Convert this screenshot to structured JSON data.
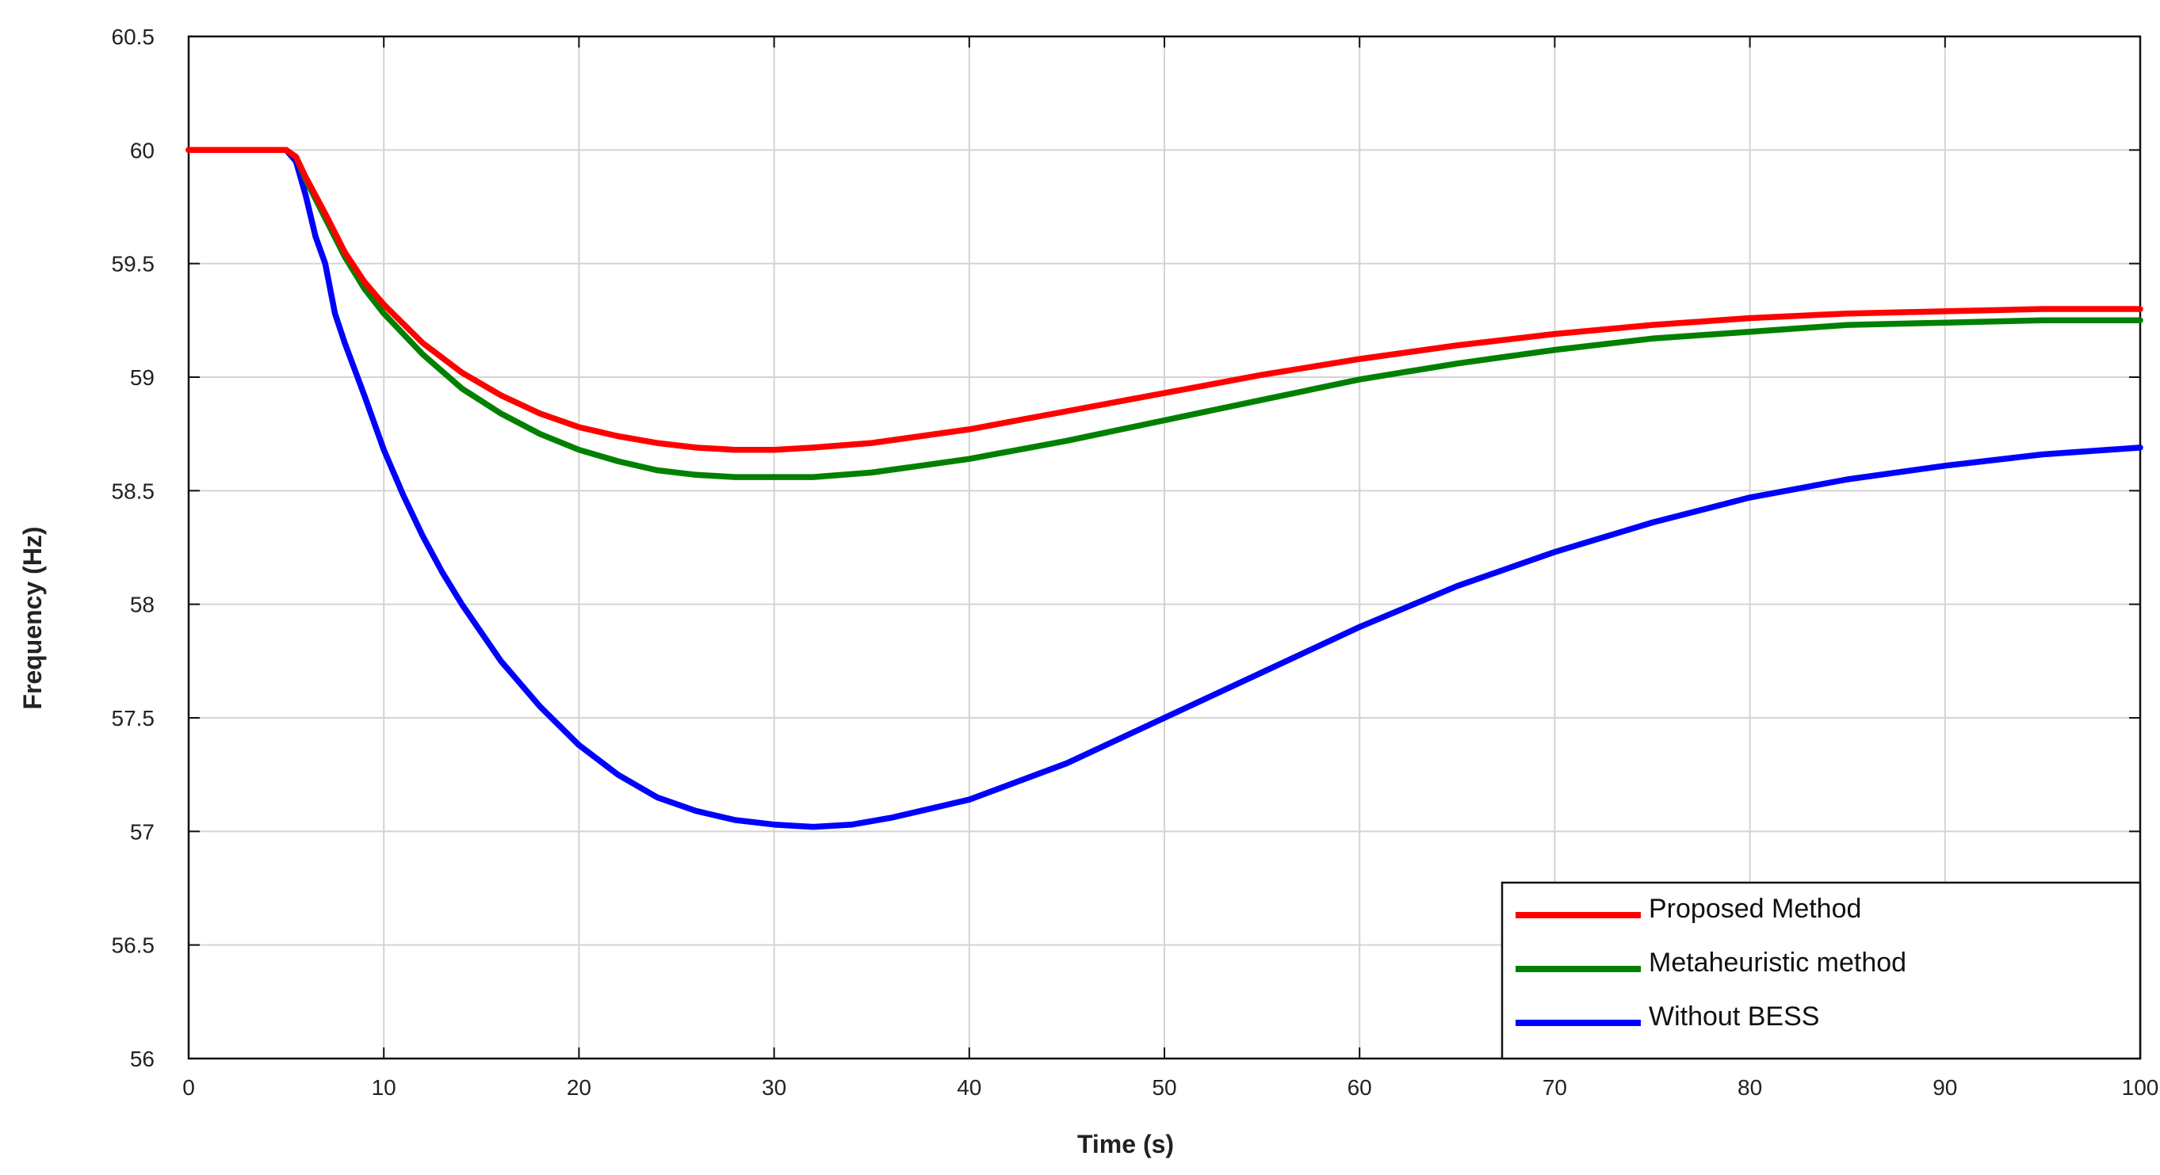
{
  "chart_data": {
    "type": "line",
    "title": "",
    "xlabel": "Time (s)",
    "ylabel": "Frequency (Hz)",
    "xlim": [
      0,
      100
    ],
    "ylim": [
      56,
      60.5
    ],
    "xticks": [
      "0",
      "10",
      "20",
      "30",
      "40",
      "50",
      "60",
      "70",
      "80",
      "90",
      "100"
    ],
    "yticks": [
      "56",
      "56.5",
      "57",
      "57.5",
      "58",
      "58.5",
      "59",
      "59.5",
      "60",
      "60.5"
    ],
    "grid": true,
    "legend_position": "bottom-right",
    "series": [
      {
        "name": "Proposed Method",
        "color": "#ff0000",
        "x": [
          0,
          5,
          5.5,
          6,
          7,
          8,
          9,
          10,
          12,
          14,
          16,
          18,
          20,
          22,
          24,
          26,
          28,
          30,
          32,
          35,
          40,
          45,
          50,
          55,
          60,
          65,
          70,
          75,
          80,
          85,
          90,
          95,
          100
        ],
        "y": [
          60,
          60,
          59.97,
          59.88,
          59.72,
          59.55,
          59.42,
          59.32,
          59.15,
          59.02,
          58.92,
          58.84,
          58.78,
          58.74,
          58.71,
          58.69,
          58.68,
          58.68,
          58.69,
          58.71,
          58.77,
          58.85,
          58.93,
          59.01,
          59.08,
          59.14,
          59.19,
          59.23,
          59.26,
          59.28,
          59.29,
          59.3,
          59.3
        ]
      },
      {
        "name": "Metaheuristic method",
        "color": "#008000",
        "x": [
          0,
          5,
          5.5,
          6,
          7,
          8,
          9,
          10,
          12,
          14,
          16,
          18,
          20,
          22,
          24,
          26,
          28,
          30,
          32,
          35,
          40,
          45,
          50,
          55,
          60,
          65,
          70,
          75,
          80,
          85,
          90,
          95,
          100
        ],
        "y": [
          60,
          60,
          59.97,
          59.87,
          59.7,
          59.53,
          59.39,
          59.28,
          59.1,
          58.95,
          58.84,
          58.75,
          58.68,
          58.63,
          58.59,
          58.57,
          58.56,
          58.56,
          58.56,
          58.58,
          58.64,
          58.72,
          58.81,
          58.9,
          58.99,
          59.06,
          59.12,
          59.17,
          59.2,
          59.23,
          59.24,
          59.25,
          59.25
        ]
      },
      {
        "name": "Without BESS",
        "color": "#0000ff",
        "x": [
          0,
          5,
          5.5,
          6,
          6.5,
          7,
          7.5,
          8,
          9,
          10,
          11,
          12,
          13,
          14,
          16,
          18,
          20,
          22,
          24,
          26,
          28,
          30,
          32,
          34,
          36,
          40,
          45,
          50,
          55,
          60,
          65,
          70,
          75,
          80,
          85,
          90,
          95,
          100
        ],
        "y": [
          60,
          60,
          59.95,
          59.8,
          59.62,
          59.5,
          59.28,
          59.15,
          58.92,
          58.68,
          58.48,
          58.3,
          58.14,
          58.0,
          57.75,
          57.55,
          57.38,
          57.25,
          57.15,
          57.09,
          57.05,
          57.03,
          57.02,
          57.03,
          57.06,
          57.14,
          57.3,
          57.5,
          57.7,
          57.9,
          58.08,
          58.23,
          58.36,
          58.47,
          58.55,
          58.61,
          58.66,
          58.69
        ]
      }
    ]
  }
}
